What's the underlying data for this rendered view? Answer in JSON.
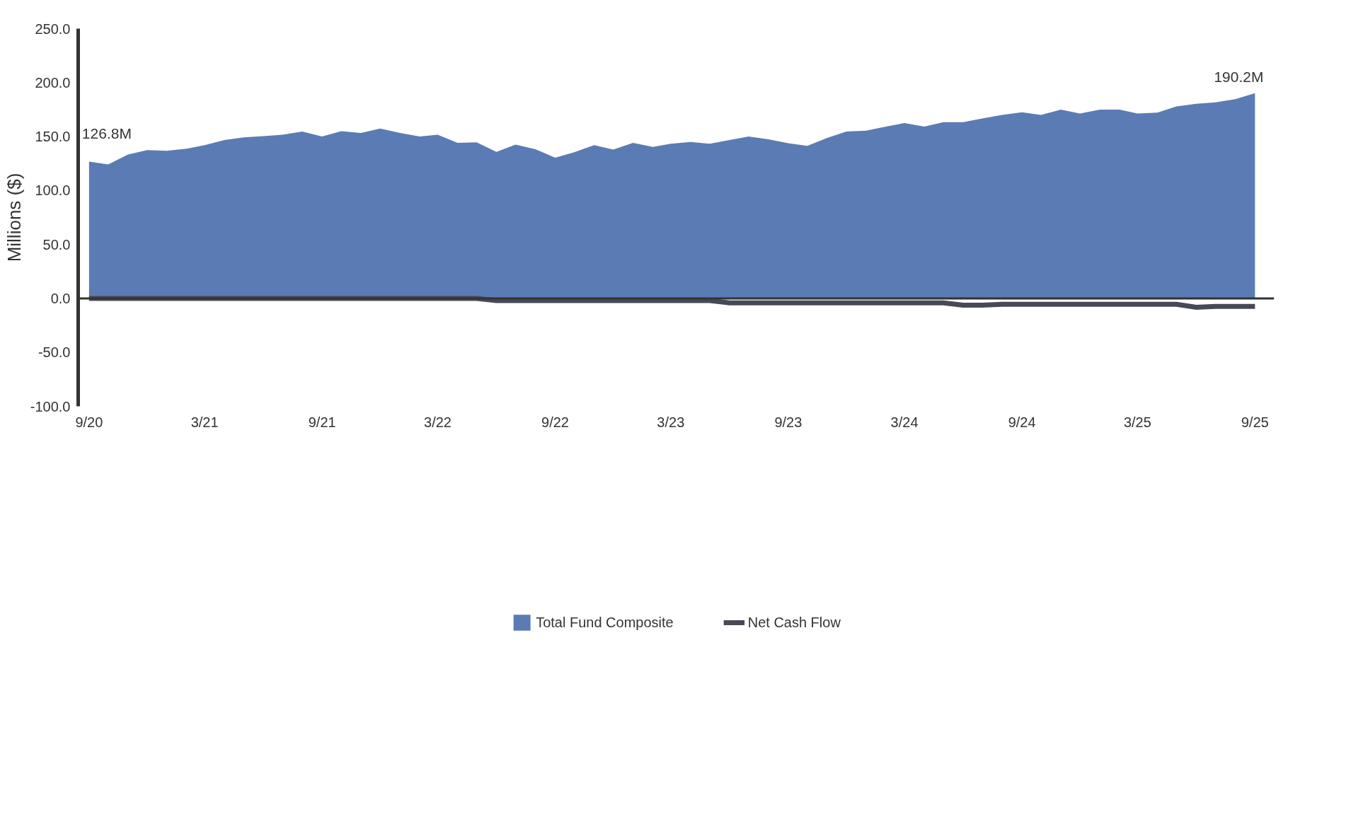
{
  "chart_data": {
    "type": "area",
    "ylabel": "Millions ($)",
    "x": [
      "2020-09",
      "2020-10",
      "2020-11",
      "2020-12",
      "2021-01",
      "2021-02",
      "2021-03",
      "2021-04",
      "2021-05",
      "2021-06",
      "2021-07",
      "2021-08",
      "2021-09",
      "2021-10",
      "2021-11",
      "2021-12",
      "2022-01",
      "2022-02",
      "2022-03",
      "2022-04",
      "2022-05",
      "2022-06",
      "2022-07",
      "2022-08",
      "2022-09",
      "2022-10",
      "2022-11",
      "2022-12",
      "2023-01",
      "2023-02",
      "2023-03",
      "2023-04",
      "2023-05",
      "2023-06",
      "2023-07",
      "2023-08",
      "2023-09",
      "2023-10",
      "2023-11",
      "2023-12",
      "2024-01",
      "2024-02",
      "2024-03",
      "2024-04",
      "2024-05",
      "2024-06",
      "2024-07",
      "2024-08",
      "2024-09",
      "2024-10",
      "2024-11",
      "2024-12",
      "2025-01",
      "2025-02",
      "2025-03",
      "2025-04",
      "2025-05",
      "2025-06",
      "2025-07",
      "2025-08",
      "2025-09"
    ],
    "series": [
      {
        "name": "Total Fund Composite",
        "type": "area",
        "color": "#5b7bb4",
        "values": [
          126.8,
          124.2,
          133.3,
          137.5,
          136.7,
          138.8,
          142,
          146.7,
          149.2,
          150.4,
          151.7,
          154.6,
          150,
          155,
          153.3,
          157.5,
          153.3,
          150,
          151.7,
          144.2,
          144.6,
          135.8,
          142.5,
          138.3,
          130.4,
          135.4,
          142,
          137.9,
          144.2,
          140.4,
          143.3,
          145,
          143.3,
          146.7,
          150,
          147.5,
          143.8,
          141.3,
          148.8,
          154.6,
          155.4,
          159.2,
          162.5,
          159.2,
          163.3,
          163.3,
          166.7,
          170,
          172.5,
          170,
          175,
          171.3,
          175,
          175,
          171.3,
          172.1,
          177.9,
          180.4,
          181.7,
          184.6,
          190.2
        ]
      },
      {
        "name": "Net Cash Flow",
        "type": "line",
        "color": "#474a55",
        "values": [
          0,
          0,
          0,
          0,
          0,
          0,
          0,
          0,
          0,
          0,
          0,
          0,
          0,
          0,
          0,
          0,
          0,
          0,
          0,
          0,
          0,
          -2,
          -2,
          -2,
          -2,
          -2,
          -2,
          -2,
          -2,
          -2,
          -2,
          -2,
          -2,
          -4.2,
          -4.2,
          -4.2,
          -4.2,
          -4.2,
          -4.2,
          -4.2,
          -4.2,
          -4.2,
          -4.2,
          -4.2,
          -4.2,
          -6.3,
          -6.3,
          -5.5,
          -5.5,
          -5.5,
          -5.5,
          -5.5,
          -5.5,
          -5.5,
          -5.5,
          -5.5,
          -5.5,
          -8.2,
          -7.4,
          -7.4,
          -7.4
        ]
      }
    ],
    "xlim": [
      "2020-08-15",
      "2025-10-01"
    ],
    "xticks": [
      {
        "value": "2020-09",
        "label": "9/20"
      },
      {
        "value": "2021-03",
        "label": "3/21"
      },
      {
        "value": "2021-09",
        "label": "9/21"
      },
      {
        "value": "2022-03",
        "label": "3/22"
      },
      {
        "value": "2022-09",
        "label": "9/22"
      },
      {
        "value": "2023-03",
        "label": "3/23"
      },
      {
        "value": "2023-09",
        "label": "9/23"
      },
      {
        "value": "2024-03",
        "label": "3/24"
      },
      {
        "value": "2024-09",
        "label": "9/24"
      },
      {
        "value": "2025-03",
        "label": "3/25"
      },
      {
        "value": "2025-09",
        "label": "9/25"
      }
    ],
    "ylim": [
      -100,
      250
    ],
    "yticks": [
      {
        "value": -100,
        "label": "-100.0"
      },
      {
        "value": -50,
        "label": "-50.0"
      },
      {
        "value": 0,
        "label": "0.0"
      },
      {
        "value": 50,
        "label": "50.0"
      },
      {
        "value": 100,
        "label": "100.0"
      },
      {
        "value": 150,
        "label": "150.0"
      },
      {
        "value": 200,
        "label": "200.0"
      },
      {
        "value": 250,
        "label": "250.0"
      }
    ],
    "ref_lines": [
      {
        "axis": "y",
        "value": 0,
        "color": "#333333"
      }
    ],
    "annotations": [
      {
        "text": "126.8M",
        "x": "2020-09",
        "y": 126.8
      },
      {
        "text": "190.2M",
        "x": "2025-09",
        "y": 190.2
      }
    ],
    "grid": false,
    "legend": "bottom",
    "line_style": "solid",
    "marker": "none"
  }
}
